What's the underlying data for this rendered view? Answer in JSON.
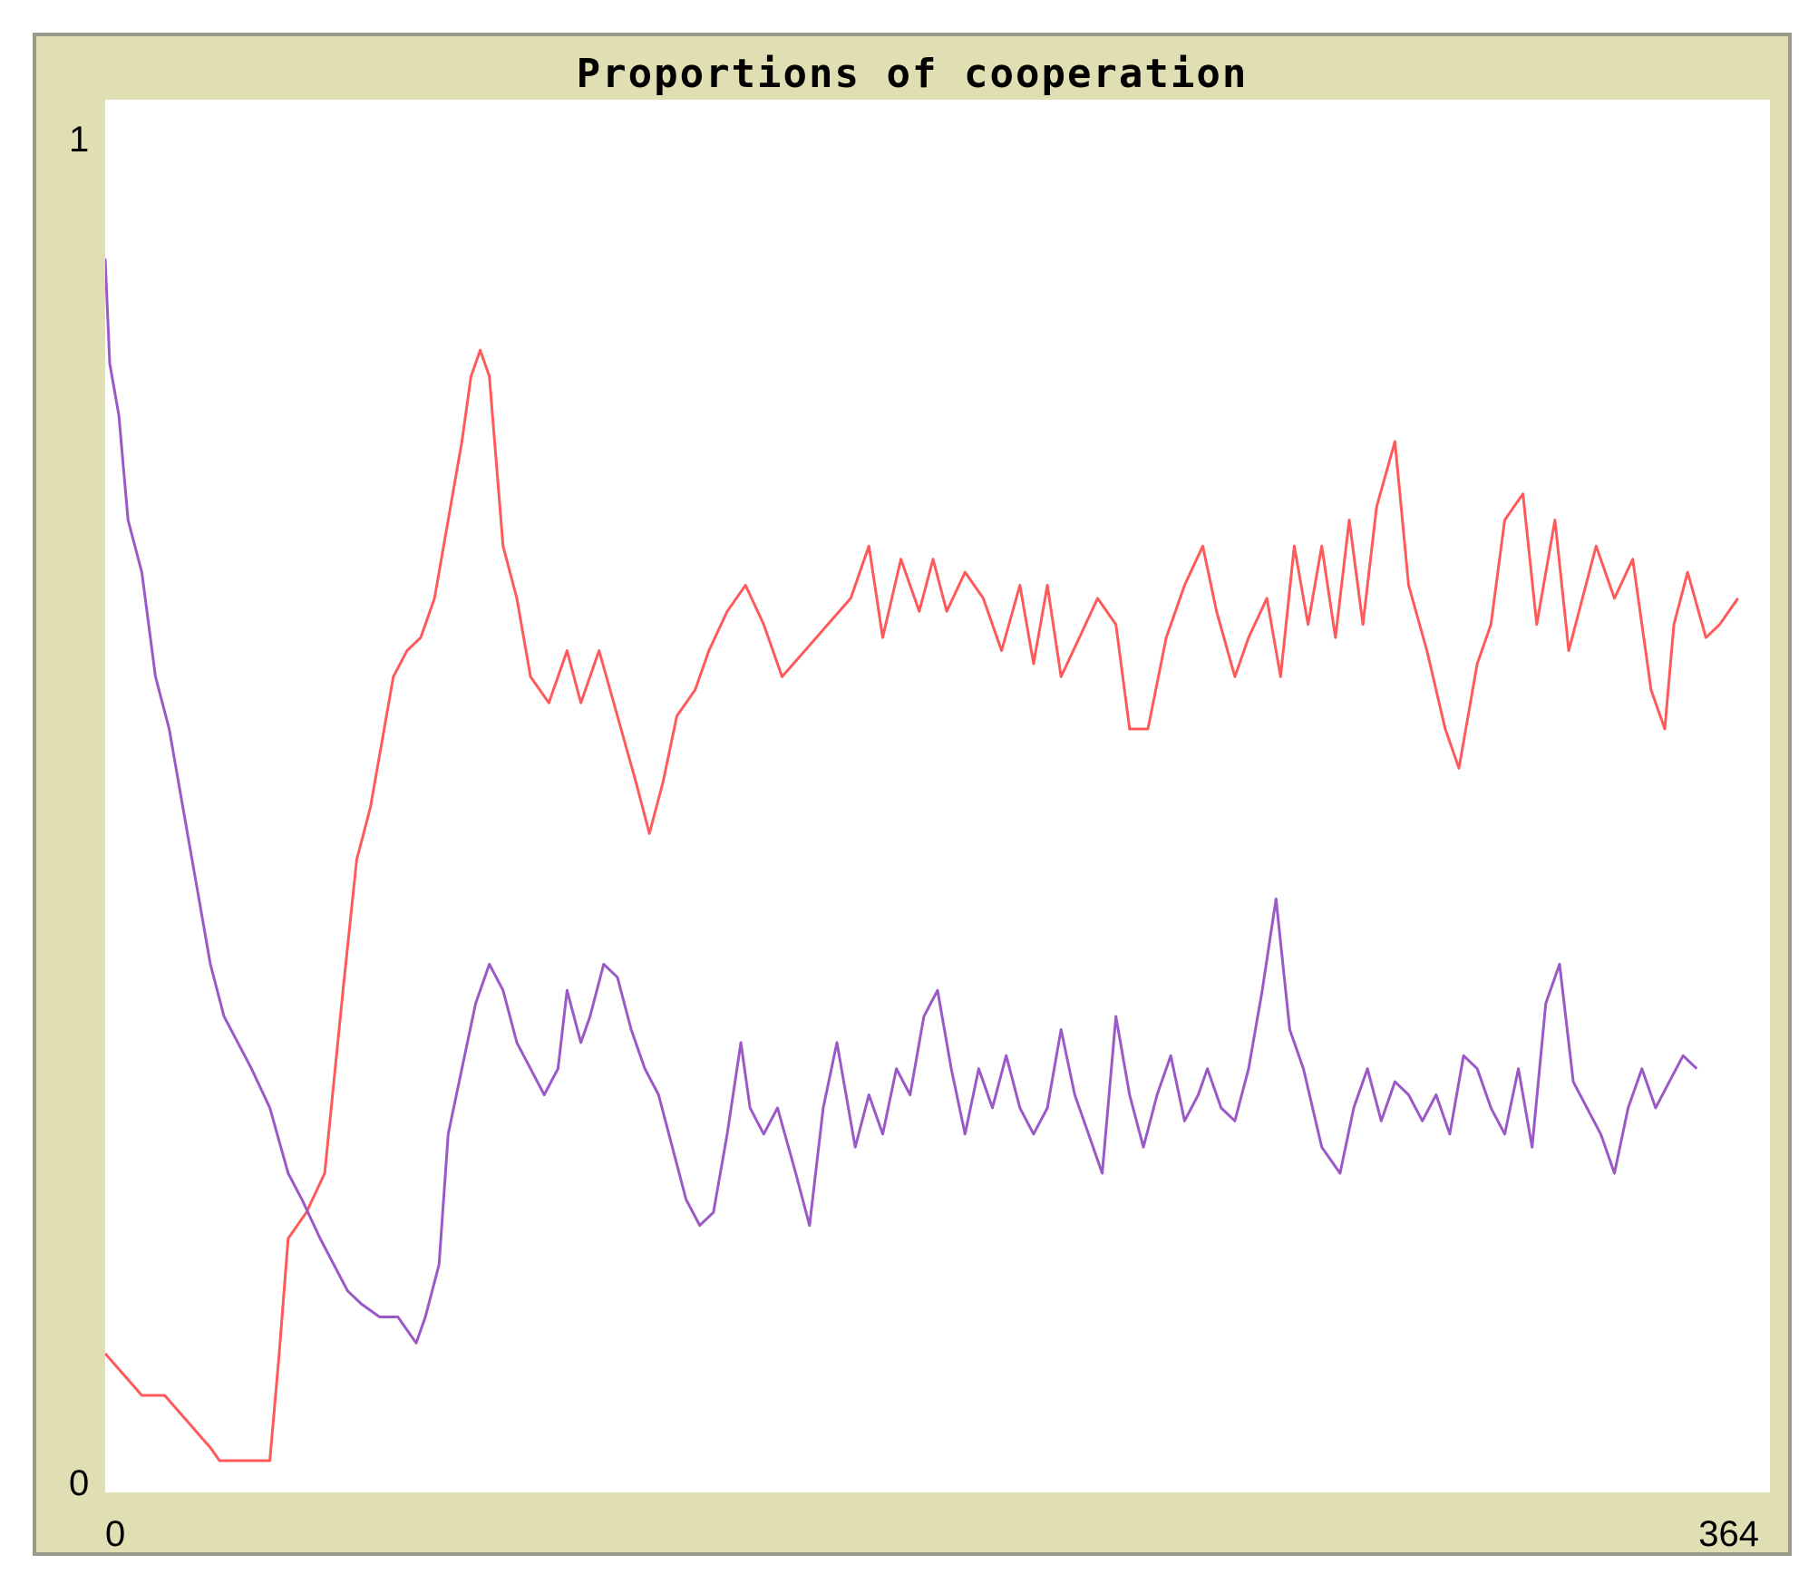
{
  "chart_data": {
    "type": "line",
    "title": "Proportions of cooperation",
    "xlim": [
      0,
      364
    ],
    "ylim": [
      0,
      1
    ],
    "x_tick_labels": [
      "0",
      "364"
    ],
    "y_tick_labels": [
      "0",
      "1"
    ],
    "grid": false,
    "legend": "none",
    "series": [
      {
        "color": "#ff5a5a",
        "points": [
          [
            0,
            0.082
          ],
          [
            2,
            0.074
          ],
          [
            4,
            0.066
          ],
          [
            6,
            0.058
          ],
          [
            8,
            0.05
          ],
          [
            13,
            0.05
          ],
          [
            15,
            0.042
          ],
          [
            17,
            0.034
          ],
          [
            19,
            0.026
          ],
          [
            21,
            0.018
          ],
          [
            23,
            0.01
          ],
          [
            25,
            0.0
          ],
          [
            36,
            0.0
          ],
          [
            38,
            0.08
          ],
          [
            40,
            0.17
          ],
          [
            44,
            0.19
          ],
          [
            48,
            0.22
          ],
          [
            52,
            0.36
          ],
          [
            55,
            0.46
          ],
          [
            58,
            0.5
          ],
          [
            61,
            0.56
          ],
          [
            63,
            0.6
          ],
          [
            66,
            0.62
          ],
          [
            69,
            0.63
          ],
          [
            72,
            0.66
          ],
          [
            75,
            0.72
          ],
          [
            78,
            0.78
          ],
          [
            80,
            0.83
          ],
          [
            82,
            0.85
          ],
          [
            84,
            0.83
          ],
          [
            87,
            0.7
          ],
          [
            90,
            0.66
          ],
          [
            93,
            0.6
          ],
          [
            97,
            0.58
          ],
          [
            101,
            0.62
          ],
          [
            104,
            0.58
          ],
          [
            108,
            0.62
          ],
          [
            112,
            0.57
          ],
          [
            116,
            0.52
          ],
          [
            119,
            0.48
          ],
          [
            122,
            0.52
          ],
          [
            125,
            0.57
          ],
          [
            129,
            0.59
          ],
          [
            132,
            0.62
          ],
          [
            136,
            0.65
          ],
          [
            140,
            0.67
          ],
          [
            144,
            0.64
          ],
          [
            148,
            0.6
          ],
          [
            153,
            0.62
          ],
          [
            158,
            0.64
          ],
          [
            163,
            0.66
          ],
          [
            167,
            0.7
          ],
          [
            170,
            0.63
          ],
          [
            174,
            0.69
          ],
          [
            178,
            0.65
          ],
          [
            181,
            0.69
          ],
          [
            184,
            0.65
          ],
          [
            188,
            0.68
          ],
          [
            192,
            0.66
          ],
          [
            196,
            0.62
          ],
          [
            200,
            0.67
          ],
          [
            203,
            0.61
          ],
          [
            206,
            0.67
          ],
          [
            209,
            0.6
          ],
          [
            213,
            0.63
          ],
          [
            217,
            0.66
          ],
          [
            221,
            0.64
          ],
          [
            224,
            0.56
          ],
          [
            228,
            0.56
          ],
          [
            232,
            0.63
          ],
          [
            236,
            0.67
          ],
          [
            240,
            0.7
          ],
          [
            243,
            0.65
          ],
          [
            247,
            0.6
          ],
          [
            250,
            0.63
          ],
          [
            254,
            0.66
          ],
          [
            257,
            0.6
          ],
          [
            260,
            0.7
          ],
          [
            263,
            0.64
          ],
          [
            266,
            0.7
          ],
          [
            269,
            0.63
          ],
          [
            272,
            0.72
          ],
          [
            275,
            0.64
          ],
          [
            278,
            0.73
          ],
          [
            282,
            0.78
          ],
          [
            285,
            0.67
          ],
          [
            289,
            0.62
          ],
          [
            293,
            0.56
          ],
          [
            296,
            0.53
          ],
          [
            300,
            0.61
          ],
          [
            303,
            0.64
          ],
          [
            306,
            0.72
          ],
          [
            310,
            0.74
          ],
          [
            313,
            0.64
          ],
          [
            317,
            0.72
          ],
          [
            320,
            0.62
          ],
          [
            323,
            0.66
          ],
          [
            326,
            0.7
          ],
          [
            330,
            0.66
          ],
          [
            334,
            0.69
          ],
          [
            338,
            0.59
          ],
          [
            341,
            0.56
          ],
          [
            343,
            0.64
          ],
          [
            346,
            0.68
          ],
          [
            350,
            0.63
          ],
          [
            353,
            0.64
          ],
          [
            357,
            0.66
          ]
        ]
      },
      {
        "color": "#9b59c7",
        "points": [
          [
            0,
            0.92
          ],
          [
            1,
            0.84
          ],
          [
            3,
            0.8
          ],
          [
            5,
            0.72
          ],
          [
            8,
            0.68
          ],
          [
            11,
            0.6
          ],
          [
            14,
            0.56
          ],
          [
            17,
            0.5
          ],
          [
            20,
            0.44
          ],
          [
            23,
            0.38
          ],
          [
            26,
            0.34
          ],
          [
            29,
            0.32
          ],
          [
            32,
            0.3
          ],
          [
            36,
            0.27
          ],
          [
            40,
            0.22
          ],
          [
            43,
            0.2
          ],
          [
            47,
            0.17
          ],
          [
            50,
            0.15
          ],
          [
            53,
            0.13
          ],
          [
            56,
            0.12
          ],
          [
            60,
            0.11
          ],
          [
            64,
            0.11
          ],
          [
            66,
            0.1
          ],
          [
            68,
            0.09
          ],
          [
            70,
            0.11
          ],
          [
            73,
            0.15
          ],
          [
            75,
            0.25
          ],
          [
            78,
            0.3
          ],
          [
            81,
            0.35
          ],
          [
            84,
            0.38
          ],
          [
            87,
            0.36
          ],
          [
            90,
            0.32
          ],
          [
            93,
            0.3
          ],
          [
            96,
            0.28
          ],
          [
            99,
            0.3
          ],
          [
            101,
            0.36
          ],
          [
            104,
            0.32
          ],
          [
            106,
            0.34
          ],
          [
            109,
            0.38
          ],
          [
            112,
            0.37
          ],
          [
            115,
            0.33
          ],
          [
            118,
            0.3
          ],
          [
            121,
            0.28
          ],
          [
            124,
            0.24
          ],
          [
            127,
            0.2
          ],
          [
            130,
            0.18
          ],
          [
            133,
            0.19
          ],
          [
            136,
            0.25
          ],
          [
            139,
            0.32
          ],
          [
            141,
            0.27
          ],
          [
            144,
            0.25
          ],
          [
            147,
            0.27
          ],
          [
            151,
            0.22
          ],
          [
            154,
            0.18
          ],
          [
            157,
            0.27
          ],
          [
            160,
            0.32
          ],
          [
            162,
            0.28
          ],
          [
            164,
            0.24
          ],
          [
            167,
            0.28
          ],
          [
            170,
            0.25
          ],
          [
            173,
            0.3
          ],
          [
            176,
            0.28
          ],
          [
            179,
            0.34
          ],
          [
            182,
            0.36
          ],
          [
            185,
            0.3
          ],
          [
            188,
            0.25
          ],
          [
            191,
            0.3
          ],
          [
            194,
            0.27
          ],
          [
            197,
            0.31
          ],
          [
            200,
            0.27
          ],
          [
            203,
            0.25
          ],
          [
            206,
            0.27
          ],
          [
            209,
            0.33
          ],
          [
            212,
            0.28
          ],
          [
            215,
            0.25
          ],
          [
            218,
            0.22
          ],
          [
            221,
            0.34
          ],
          [
            224,
            0.28
          ],
          [
            227,
            0.24
          ],
          [
            230,
            0.28
          ],
          [
            233,
            0.31
          ],
          [
            236,
            0.26
          ],
          [
            239,
            0.28
          ],
          [
            241,
            0.3
          ],
          [
            244,
            0.27
          ],
          [
            247,
            0.26
          ],
          [
            250,
            0.3
          ],
          [
            253,
            0.36
          ],
          [
            256,
            0.43
          ],
          [
            259,
            0.33
          ],
          [
            262,
            0.3
          ],
          [
            266,
            0.24
          ],
          [
            270,
            0.22
          ],
          [
            273,
            0.27
          ],
          [
            276,
            0.3
          ],
          [
            279,
            0.26
          ],
          [
            282,
            0.29
          ],
          [
            285,
            0.28
          ],
          [
            288,
            0.26
          ],
          [
            291,
            0.28
          ],
          [
            294,
            0.25
          ],
          [
            297,
            0.31
          ],
          [
            300,
            0.3
          ],
          [
            303,
            0.27
          ],
          [
            306,
            0.25
          ],
          [
            309,
            0.3
          ],
          [
            312,
            0.24
          ],
          [
            315,
            0.35
          ],
          [
            318,
            0.38
          ],
          [
            321,
            0.29
          ],
          [
            324,
            0.27
          ],
          [
            327,
            0.25
          ],
          [
            330,
            0.22
          ],
          [
            333,
            0.27
          ],
          [
            336,
            0.3
          ],
          [
            339,
            0.27
          ],
          [
            342,
            0.29
          ],
          [
            345,
            0.31
          ],
          [
            348,
            0.3
          ]
        ]
      }
    ]
  }
}
